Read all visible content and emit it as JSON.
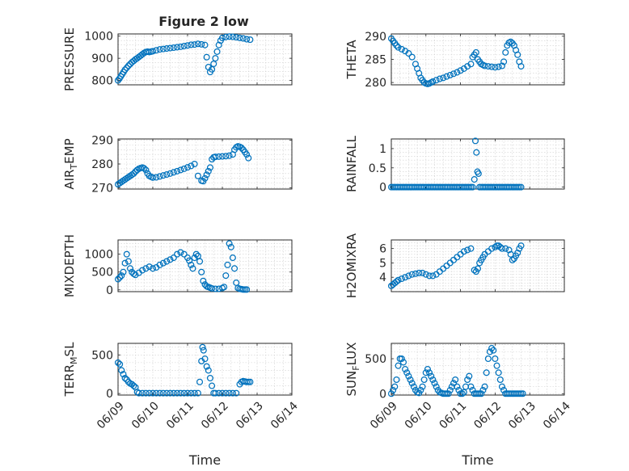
{
  "figure": {
    "title": "Figure 2 low",
    "marker_color": "#0072BD",
    "axis_color": "#262626",
    "grid_color": "#cfcfcf"
  },
  "chart_data": [
    {
      "type": "scatter",
      "ylabel": "PRESSURE",
      "ylabel_sub": "",
      "ylabel_tail": "",
      "xlim": [
        "06/09",
        "06/14"
      ],
      "ylim": [
        780,
        1010
      ],
      "xticks": [
        "06/09",
        "06/10",
        "06/11",
        "06/12",
        "06/13",
        "06/14"
      ],
      "yticks": [
        800,
        900,
        1000
      ],
      "grid": true,
      "xticklabels_shown": false,
      "xlabel": "",
      "x": [
        0.0,
        0.04,
        0.08,
        0.12,
        0.16,
        0.2,
        0.25,
        0.3,
        0.35,
        0.4,
        0.45,
        0.5,
        0.55,
        0.6,
        0.65,
        0.7,
        0.75,
        0.8,
        0.85,
        0.9,
        0.95,
        1.0,
        1.1,
        1.2,
        1.3,
        1.4,
        1.5,
        1.6,
        1.7,
        1.8,
        1.9,
        2.0,
        2.1,
        2.2,
        2.3,
        2.4,
        2.5,
        2.55,
        2.6,
        2.65,
        2.7,
        2.75,
        2.8,
        2.85,
        2.9,
        2.95,
        3.0,
        3.1,
        3.2,
        3.3,
        3.4,
        3.5,
        3.6,
        3.7,
        3.8
      ],
      "y": [
        800,
        808,
        818,
        828,
        838,
        848,
        857,
        866,
        874,
        882,
        888,
        895,
        900,
        906,
        912,
        918,
        924,
        928,
        930,
        928,
        930,
        932,
        936,
        940,
        942,
        944,
        946,
        948,
        950,
        952,
        955,
        958,
        961,
        962,
        965,
        963,
        960,
        905,
        860,
        838,
        850,
        875,
        900,
        930,
        960,
        980,
        992,
        996,
        998,
        997,
        995,
        992,
        990,
        986,
        984
      ]
    },
    {
      "type": "scatter",
      "ylabel": "THETA",
      "ylabel_sub": "",
      "ylabel_tail": "",
      "xlim": [
        "06/09",
        "06/14"
      ],
      "ylim": [
        279.5,
        290.5
      ],
      "xticks": [
        "06/09",
        "06/10",
        "06/11",
        "06/12",
        "06/13",
        "06/14"
      ],
      "yticks": [
        280,
        285,
        290
      ],
      "grid": true,
      "xticklabels_shown": false,
      "xlabel": "",
      "x": [
        0.0,
        0.05,
        0.1,
        0.15,
        0.2,
        0.3,
        0.4,
        0.5,
        0.6,
        0.7,
        0.75,
        0.8,
        0.85,
        0.9,
        0.95,
        1.0,
        1.05,
        1.1,
        1.15,
        1.2,
        1.3,
        1.4,
        1.5,
        1.6,
        1.7,
        1.8,
        1.9,
        2.0,
        2.1,
        2.2,
        2.3,
        2.35,
        2.4,
        2.45,
        2.5,
        2.55,
        2.6,
        2.65,
        2.7,
        2.8,
        2.9,
        3.0,
        3.1,
        3.2,
        3.25,
        3.3,
        3.35,
        3.4,
        3.45,
        3.5,
        3.55,
        3.6,
        3.65,
        3.7,
        3.75
      ],
      "y": [
        289.5,
        289,
        288.5,
        288,
        287.6,
        287.2,
        286.8,
        286.3,
        285.5,
        284,
        283,
        282,
        281,
        280.5,
        280,
        279.8,
        279.7,
        279.8,
        280,
        280.2,
        280.5,
        280.8,
        281,
        281.3,
        281.6,
        281.9,
        282.2,
        282.6,
        283,
        283.5,
        284,
        285.5,
        286,
        286.5,
        285,
        284.5,
        284,
        283.8,
        283.6,
        283.5,
        283.4,
        283.3,
        283.4,
        283.6,
        284.5,
        286.5,
        288,
        288.6,
        288.8,
        288.5,
        288,
        287,
        286,
        284.5,
        283.5
      ]
    },
    {
      "type": "scatter",
      "ylabel": "AIR",
      "ylabel_sub": "T",
      "ylabel_tail": "EMP",
      "xlim": [
        "06/09",
        "06/14"
      ],
      "ylim": [
        269.5,
        290.5
      ],
      "xticks": [
        "06/09",
        "06/10",
        "06/11",
        "06/12",
        "06/13",
        "06/14"
      ],
      "yticks": [
        270,
        280,
        290
      ],
      "grid": true,
      "xticklabels_shown": false,
      "xlabel": "",
      "x": [
        0.0,
        0.05,
        0.1,
        0.15,
        0.2,
        0.25,
        0.3,
        0.35,
        0.4,
        0.45,
        0.5,
        0.55,
        0.6,
        0.65,
        0.7,
        0.75,
        0.8,
        0.85,
        0.9,
        0.95,
        1.0,
        1.1,
        1.2,
        1.3,
        1.4,
        1.5,
        1.6,
        1.7,
        1.8,
        1.9,
        2.0,
        2.1,
        2.2,
        2.3,
        2.4,
        2.45,
        2.5,
        2.55,
        2.6,
        2.65,
        2.7,
        2.75,
        2.8,
        2.9,
        3.0,
        3.1,
        3.2,
        3.3,
        3.35,
        3.4,
        3.45,
        3.5,
        3.55,
        3.6,
        3.65,
        3.7,
        3.75
      ],
      "y": [
        271.5,
        272,
        272.5,
        273,
        273.5,
        274,
        274.5,
        275,
        275.5,
        276,
        276.8,
        277.5,
        278,
        278.3,
        278.5,
        278.2,
        277.5,
        276,
        275,
        274.6,
        274.3,
        274.4,
        274.8,
        275.2,
        275.6,
        276,
        276.5,
        277,
        277.5,
        278,
        278.6,
        279.2,
        280,
        275,
        273,
        272.8,
        274,
        275.5,
        277,
        278.5,
        282,
        282.8,
        283,
        283.1,
        283.2,
        283.3,
        283.5,
        284,
        286,
        287,
        287.4,
        287.2,
        286.8,
        286,
        285,
        284,
        282.5
      ]
    },
    {
      "type": "scatter",
      "ylabel": "RAINFALL",
      "ylabel_sub": "",
      "ylabel_tail": "",
      "xlim": [
        "06/09",
        "06/14"
      ],
      "ylim": [
        -0.05,
        1.25
      ],
      "xticks": [
        "06/09",
        "06/10",
        "06/11",
        "06/12",
        "06/13",
        "06/14"
      ],
      "yticks": [
        0,
        0.5,
        1
      ],
      "yticklabels": [
        "0",
        "0.5",
        "1"
      ],
      "grid": true,
      "xticklabels_shown": false,
      "xlabel": "",
      "x": [
        0.0,
        0.05,
        0.1,
        0.15,
        0.2,
        0.25,
        0.3,
        0.35,
        0.4,
        0.45,
        0.5,
        0.55,
        0.6,
        0.65,
        0.7,
        0.75,
        0.8,
        0.85,
        0.9,
        0.95,
        1.0,
        1.05,
        1.1,
        1.15,
        1.2,
        1.25,
        1.3,
        1.35,
        1.4,
        1.45,
        1.5,
        1.55,
        1.6,
        1.65,
        1.7,
        1.75,
        1.8,
        1.85,
        1.9,
        1.95,
        2.0,
        2.05,
        2.1,
        2.15,
        2.2,
        2.25,
        2.3,
        2.35,
        2.4,
        2.43,
        2.46,
        2.49,
        2.52,
        2.55,
        2.6,
        2.65,
        2.7,
        2.75,
        2.8,
        2.85,
        2.9,
        2.95,
        3.0,
        3.05,
        3.1,
        3.15,
        3.2,
        3.25,
        3.3,
        3.35,
        3.4,
        3.45,
        3.5,
        3.55,
        3.6,
        3.65,
        3.7,
        3.75
      ],
      "y": [
        0,
        0,
        0,
        0,
        0,
        0,
        0,
        0,
        0,
        0,
        0,
        0,
        0,
        0,
        0,
        0,
        0,
        0,
        0,
        0,
        0,
        0,
        0,
        0,
        0,
        0,
        0,
        0,
        0,
        0,
        0,
        0,
        0,
        0,
        0,
        0,
        0,
        0,
        0,
        0,
        0,
        0,
        0,
        0,
        0,
        0,
        0,
        0,
        0.2,
        1.2,
        0.9,
        0.4,
        0.35,
        0,
        0,
        0,
        0,
        0,
        0,
        0,
        0,
        0,
        0,
        0,
        0,
        0,
        0,
        0,
        0,
        0,
        0,
        0,
        0,
        0,
        0,
        0,
        0,
        0
      ]
    },
    {
      "type": "scatter",
      "ylabel": "MIXDEPTH",
      "ylabel_sub": "",
      "ylabel_tail": "",
      "xlim": [
        "06/09",
        "06/14"
      ],
      "ylim": [
        -50,
        1400
      ],
      "xticks": [
        "06/09",
        "06/10",
        "06/11",
        "06/12",
        "06/13",
        "06/14"
      ],
      "yticks": [
        0,
        500,
        1000
      ],
      "grid": true,
      "xticklabels_shown": false,
      "xlabel": "",
      "x": [
        0.0,
        0.05,
        0.1,
        0.15,
        0.2,
        0.25,
        0.3,
        0.35,
        0.4,
        0.45,
        0.5,
        0.6,
        0.7,
        0.8,
        0.9,
        1.0,
        1.1,
        1.2,
        1.3,
        1.4,
        1.5,
        1.6,
        1.7,
        1.8,
        1.9,
        2.0,
        2.05,
        2.1,
        2.15,
        2.2,
        2.25,
        2.3,
        2.35,
        2.4,
        2.45,
        2.5,
        2.55,
        2.6,
        2.65,
        2.7,
        2.8,
        2.9,
        3.0,
        3.05,
        3.1,
        3.15,
        3.2,
        3.25,
        3.3,
        3.35,
        3.4,
        3.45,
        3.5,
        3.55,
        3.6,
        3.65,
        3.7
      ],
      "y": [
        300,
        350,
        400,
        500,
        750,
        1000,
        800,
        600,
        500,
        450,
        420,
        480,
        550,
        600,
        650,
        600,
        630,
        700,
        750,
        800,
        850,
        900,
        1000,
        1050,
        1000,
        900,
        820,
        700,
        600,
        900,
        1000,
        950,
        800,
        500,
        250,
        150,
        100,
        80,
        60,
        40,
        30,
        30,
        50,
        80,
        400,
        700,
        1300,
        1200,
        900,
        600,
        200,
        50,
        30,
        20,
        10,
        10,
        10
      ]
    },
    {
      "type": "scatter",
      "ylabel": "H2OMIXRA",
      "ylabel_sub": "",
      "ylabel_tail": "",
      "xlim": [
        "06/09",
        "06/14"
      ],
      "ylim": [
        3.0,
        6.6
      ],
      "xticks": [
        "06/09",
        "06/10",
        "06/11",
        "06/12",
        "06/13",
        "06/14"
      ],
      "yticks": [
        4,
        5,
        6
      ],
      "grid": true,
      "xticklabels_shown": false,
      "xlabel": "",
      "x": [
        0.0,
        0.05,
        0.1,
        0.15,
        0.2,
        0.3,
        0.4,
        0.5,
        0.6,
        0.7,
        0.8,
        0.9,
        1.0,
        1.1,
        1.2,
        1.3,
        1.4,
        1.5,
        1.6,
        1.7,
        1.8,
        1.9,
        2.0,
        2.1,
        2.2,
        2.3,
        2.4,
        2.45,
        2.5,
        2.55,
        2.6,
        2.65,
        2.7,
        2.8,
        2.9,
        3.0,
        3.05,
        3.1,
        3.15,
        3.2,
        3.3,
        3.4,
        3.45,
        3.5,
        3.55,
        3.6,
        3.65,
        3.7,
        3.75
      ],
      "y": [
        3.4,
        3.5,
        3.6,
        3.7,
        3.8,
        3.9,
        4.0,
        4.1,
        4.2,
        4.25,
        4.3,
        4.3,
        4.2,
        4.1,
        4.1,
        4.2,
        4.4,
        4.6,
        4.8,
        5.0,
        5.2,
        5.4,
        5.6,
        5.8,
        5.9,
        6.0,
        4.5,
        4.4,
        4.6,
        5.0,
        5.2,
        5.4,
        5.6,
        5.8,
        6.0,
        6.1,
        6.2,
        6.2,
        6.1,
        6.0,
        6.0,
        5.9,
        5.6,
        5.2,
        5.3,
        5.5,
        5.7,
        6.0,
        6.2
      ]
    },
    {
      "type": "scatter",
      "ylabel": "TERR",
      "ylabel_sub": "M",
      "ylabel_tail": "SL",
      "xlim": [
        "06/09",
        "06/14"
      ],
      "ylim": [
        -20,
        650
      ],
      "xticks": [
        "06/09",
        "06/10",
        "06/11",
        "06/12",
        "06/13",
        "06/14"
      ],
      "yticks": [
        0,
        500
      ],
      "grid": true,
      "xticklabels_shown": true,
      "xlabel": "Time",
      "x": [
        0.0,
        0.05,
        0.1,
        0.15,
        0.2,
        0.25,
        0.3,
        0.35,
        0.4,
        0.45,
        0.5,
        0.55,
        0.6,
        0.7,
        0.8,
        0.9,
        1.0,
        1.1,
        1.2,
        1.3,
        1.4,
        1.5,
        1.6,
        1.7,
        1.8,
        1.9,
        2.0,
        2.1,
        2.2,
        2.3,
        2.35,
        2.4,
        2.43,
        2.46,
        2.5,
        2.55,
        2.6,
        2.65,
        2.7,
        2.75,
        2.8,
        2.9,
        3.0,
        3.1,
        3.2,
        3.3,
        3.4,
        3.5,
        3.55,
        3.6,
        3.65,
        3.7,
        3.75,
        3.8
      ],
      "y": [
        400,
        380,
        300,
        250,
        200,
        180,
        150,
        130,
        120,
        100,
        80,
        20,
        5,
        5,
        5,
        5,
        5,
        5,
        5,
        5,
        5,
        5,
        5,
        5,
        5,
        5,
        5,
        5,
        5,
        5,
        150,
        420,
        600,
        560,
        450,
        350,
        300,
        200,
        100,
        5,
        5,
        5,
        5,
        5,
        5,
        5,
        5,
        120,
        150,
        160,
        155,
        150,
        150,
        150
      ]
    },
    {
      "type": "scatter",
      "ylabel": "SUN",
      "ylabel_sub": "F",
      "ylabel_tail": "LUX",
      "xlim": [
        "06/09",
        "06/14"
      ],
      "ylim": [
        -20,
        720
      ],
      "xticks": [
        "06/09",
        "06/10",
        "06/11",
        "06/12",
        "06/13",
        "06/14"
      ],
      "yticks": [
        0,
        500
      ],
      "grid": true,
      "xticklabels_shown": true,
      "xlabel": "Time",
      "x": [
        0.0,
        0.05,
        0.1,
        0.15,
        0.2,
        0.25,
        0.3,
        0.35,
        0.4,
        0.45,
        0.5,
        0.55,
        0.6,
        0.65,
        0.7,
        0.75,
        0.8,
        0.85,
        0.9,
        0.95,
        1.0,
        1.05,
        1.1,
        1.15,
        1.2,
        1.25,
        1.3,
        1.35,
        1.4,
        1.45,
        1.5,
        1.55,
        1.6,
        1.65,
        1.7,
        1.75,
        1.8,
        1.85,
        1.9,
        1.95,
        2.0,
        2.05,
        2.1,
        2.15,
        2.2,
        2.25,
        2.3,
        2.35,
        2.4,
        2.45,
        2.5,
        2.55,
        2.6,
        2.65,
        2.7,
        2.75,
        2.8,
        2.85,
        2.9,
        2.95,
        3.0,
        3.05,
        3.1,
        3.15,
        3.2,
        3.25,
        3.3,
        3.35,
        3.4,
        3.45,
        3.5,
        3.55,
        3.6,
        3.65,
        3.7,
        3.75,
        3.8
      ],
      "y": [
        0,
        50,
        100,
        200,
        400,
        500,
        500,
        450,
        350,
        300,
        250,
        200,
        150,
        100,
        50,
        20,
        10,
        50,
        100,
        200,
        300,
        350,
        300,
        250,
        200,
        150,
        100,
        50,
        20,
        10,
        0,
        0,
        0,
        0,
        50,
        100,
        150,
        200,
        100,
        50,
        0,
        0,
        20,
        100,
        200,
        250,
        100,
        50,
        0,
        0,
        0,
        0,
        0,
        50,
        100,
        300,
        500,
        600,
        650,
        620,
        500,
        400,
        300,
        200,
        100,
        50,
        0,
        0,
        0,
        0,
        0,
        0,
        0,
        0,
        0,
        0,
        0
      ]
    }
  ]
}
